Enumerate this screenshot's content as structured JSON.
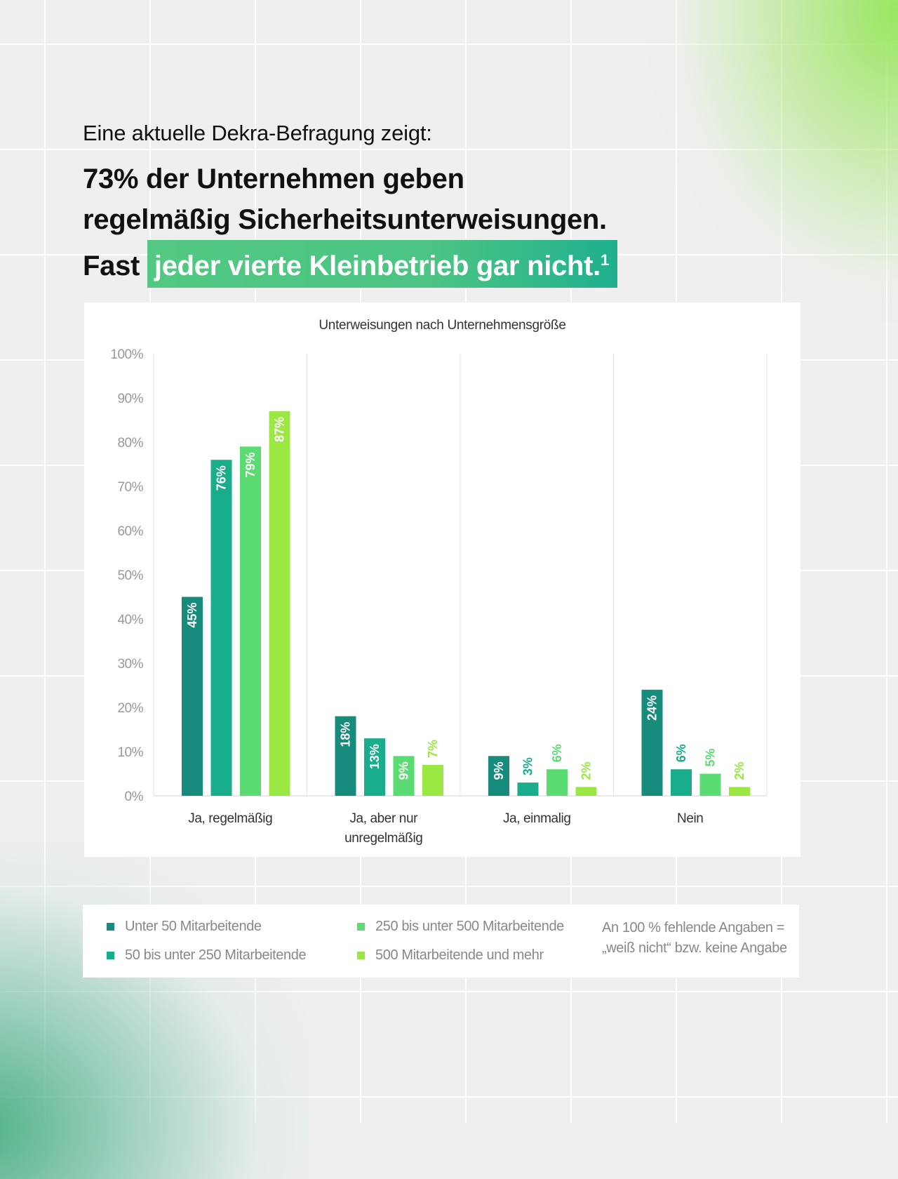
{
  "headline": {
    "subtitle": "Eine aktuelle Dekra-Befragung zeigt:",
    "line1": "73% der Unternehmen geben",
    "line2": "regelmäßig Sicherheitsunterweisungen.",
    "line3_prefix": "Fast",
    "line3_highlight": "jeder vierte Kleinbetrieb gar nicht.",
    "footnote_marker": "1"
  },
  "colors": {
    "series": [
      "#178c7c",
      "#19ad8c",
      "#5bdc72",
      "#9be845"
    ],
    "highlight_start": "#52c882",
    "highlight_end": "#1fb08e"
  },
  "chart_data": {
    "type": "bar",
    "title": "Unterweisungen nach Unternehmensgröße",
    "xlabel": "",
    "ylabel": "",
    "ylim": [
      0,
      100
    ],
    "yticks": [
      0,
      10,
      20,
      30,
      40,
      50,
      60,
      70,
      80,
      90,
      100
    ],
    "ytick_labels": [
      "0%",
      "10%",
      "20%",
      "30%",
      "40%",
      "50%",
      "60%",
      "70%",
      "80%",
      "90%",
      "100%"
    ],
    "grid": false,
    "legend_position": "bottom",
    "categories": [
      [
        "Ja, regelmäßig"
      ],
      [
        "Ja, aber nur",
        "unregelmäßig"
      ],
      [
        "Ja, einmalig"
      ],
      [
        "Nein"
      ]
    ],
    "series": [
      {
        "name": "Unter 50 Mitarbeitende",
        "values": [
          45,
          18,
          9,
          24
        ],
        "labels": [
          "45%",
          "18%",
          "9%",
          "24%"
        ]
      },
      {
        "name": "50 bis unter 250 Mitarbeitende",
        "values": [
          76,
          13,
          3,
          6
        ],
        "labels": [
          "76%",
          "13%",
          "3%",
          "6%"
        ]
      },
      {
        "name": "250 bis unter 500 Mitarbeitende",
        "values": [
          79,
          9,
          6,
          5
        ],
        "labels": [
          "79%",
          "9%",
          "6%",
          "5%"
        ]
      },
      {
        "name": "500 Mitarbeitende und mehr",
        "values": [
          87,
          7,
          2,
          2
        ],
        "labels": [
          "87%",
          "7%",
          "2%",
          "2%"
        ]
      }
    ],
    "note": [
      "An 100 % fehlende Angaben =",
      "„weiß nicht“ bzw. keine Angabe"
    ]
  }
}
